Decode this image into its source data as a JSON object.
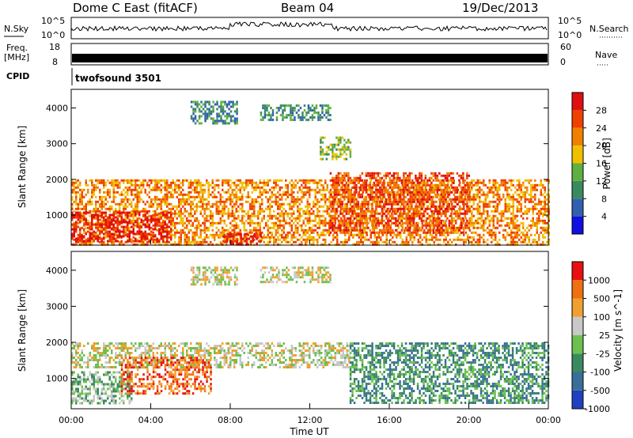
{
  "header": {
    "station": "Dome C East (fitACF)",
    "beam": "Beam 04",
    "date": "19/Dec/2013"
  },
  "top_panels": {
    "nsky_label": "N.Sky",
    "nsky_ticks": [
      "10^5",
      "10^0"
    ],
    "nsearch_label": "N.Search",
    "freq_label": "Freq.",
    "freq_unit": "[MHz]",
    "freq_ticks": [
      "18",
      "8"
    ],
    "nave_label": "Nave",
    "nave_ticks": [
      "60",
      "0"
    ],
    "cpid_label": "CPID",
    "cpid_value": "twofsound 3501"
  },
  "chart_data": [
    {
      "type": "heatmap",
      "name": "power",
      "ylabel": "Slant Range [km]",
      "ylim": [
        180,
        4500
      ],
      "yticks": [
        1000,
        2000,
        3000,
        4000
      ],
      "xlim": [
        0,
        24
      ],
      "colorbar": {
        "label": "Power [dB]",
        "ticks": [
          "4",
          "8",
          "12",
          "16",
          "20",
          "24",
          "28"
        ],
        "colors": [
          "#1010e0",
          "#3060b0",
          "#3a8a60",
          "#60b040",
          "#f0c000",
          "#f08000",
          "#f04000",
          "#e01010"
        ]
      },
      "regions": [
        {
          "t0": 0,
          "t1": 24,
          "r0": 200,
          "r1": 2000,
          "level": 5,
          "desc": "main echo band"
        },
        {
          "t0": 0,
          "t1": 5,
          "r0": 300,
          "r1": 1100,
          "level": 7
        },
        {
          "t0": 7.5,
          "t1": 9.5,
          "r0": 200,
          "r1": 500,
          "level": 7
        },
        {
          "t0": 13,
          "t1": 20,
          "r0": 500,
          "r1": 2200,
          "level": 6
        },
        {
          "t0": 6,
          "t1": 8.3,
          "r0": 3600,
          "r1": 4200,
          "level": 2
        },
        {
          "t0": 9.5,
          "t1": 13,
          "r0": 3700,
          "r1": 4100,
          "level": 2
        },
        {
          "t0": 12.5,
          "t1": 14,
          "r0": 2600,
          "r1": 3200,
          "level": 3
        }
      ]
    },
    {
      "type": "heatmap",
      "name": "velocity",
      "ylabel": "Slant Range [km]",
      "xlabel": "Time UT",
      "ylim": [
        180,
        4500
      ],
      "yticks": [
        1000,
        2000,
        3000,
        4000
      ],
      "xlim": [
        0,
        24
      ],
      "xticks": [
        "00:00",
        "04:00",
        "08:00",
        "12:00",
        "16:00",
        "20:00",
        "00:00"
      ],
      "colorbar": {
        "label": "Velocity [m s^-1]",
        "ticks": [
          "1000",
          "500",
          "100",
          "25",
          "-25",
          "-100",
          "-500",
          "-1000"
        ],
        "colors": [
          "#2040c0",
          "#3a6e9a",
          "#3a8a60",
          "#6cc050",
          "#c8c8c8",
          "#f0a030",
          "#f07010",
          "#e81010"
        ]
      },
      "regions": [
        {
          "t0": 0,
          "t1": 14,
          "r0": 1300,
          "r1": 2000,
          "level": 4
        },
        {
          "t0": 0,
          "t1": 3,
          "r0": 300,
          "r1": 1200,
          "level": 3
        },
        {
          "t0": 2.5,
          "t1": 7,
          "r0": 600,
          "r1": 1600,
          "level": 6
        },
        {
          "t0": 14,
          "t1": 24,
          "r0": 300,
          "r1": 2000,
          "level": 2
        },
        {
          "t0": 6,
          "t1": 8.3,
          "r0": 3600,
          "r1": 4100,
          "level": 4
        },
        {
          "t0": 9.5,
          "t1": 13,
          "r0": 3700,
          "r1": 4100,
          "level": 4
        }
      ]
    }
  ]
}
